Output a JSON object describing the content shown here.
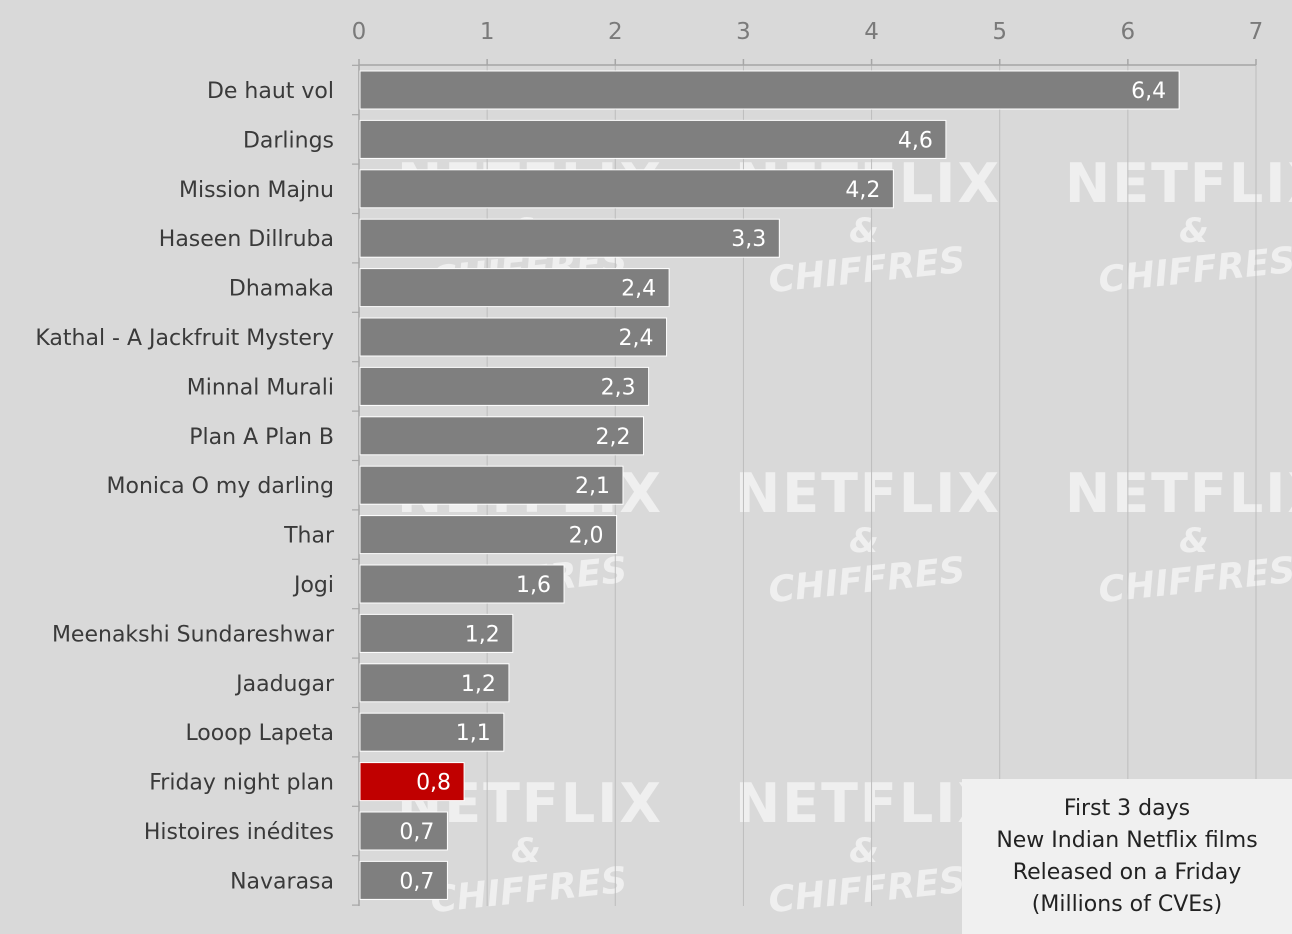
{
  "chart_data": {
    "type": "bar",
    "orientation": "horizontal",
    "categories": [
      "De haut vol",
      "Darlings",
      "Mission Majnu",
      "Haseen Dillruba",
      "Dhamaka",
      "Kathal - A Jackfruit Mystery",
      "Minnal Murali",
      "Plan A Plan B",
      "Monica O my darling",
      "Thar",
      "Jogi",
      "Meenakshi Sundareshwar",
      "Jaadugar",
      "Looop Lapeta",
      "Friday night plan",
      "Histoires inédites",
      "Navarasa"
    ],
    "values": [
      6.4,
      4.58,
      4.17,
      3.28,
      2.42,
      2.4,
      2.26,
      2.22,
      2.06,
      2.01,
      1.6,
      1.2,
      1.17,
      1.13,
      0.82,
      0.69,
      0.69
    ],
    "value_labels": [
      "6,4",
      "4,6",
      "4,2",
      "3,3",
      "2,4",
      "2,4",
      "2,3",
      "2,2",
      "2,1",
      "2,0",
      "1,6",
      "1,2",
      "1,2",
      "1,1",
      "0,8",
      "0,7",
      "0,7"
    ],
    "highlight": "Friday night plan",
    "xlim": [
      0,
      7
    ],
    "xticks": [
      "0",
      "1",
      "2",
      "3",
      "4",
      "5",
      "6",
      "7"
    ],
    "axis_position": "top",
    "grid": true,
    "colors": {
      "bar": "#7f7f7f",
      "highlight": "#c00000",
      "background": "#d9d9d9",
      "grid": "#bdbdbd"
    },
    "legend_placement": "bottom-right",
    "title_lines": [
      "First 3 days",
      "New Indian Netflix films",
      "Released on a Friday",
      "(Millions of CVEs)"
    ],
    "watermark": {
      "brand": "NETFLIX",
      "amp": "&",
      "sub": "CHIFFRES"
    }
  }
}
